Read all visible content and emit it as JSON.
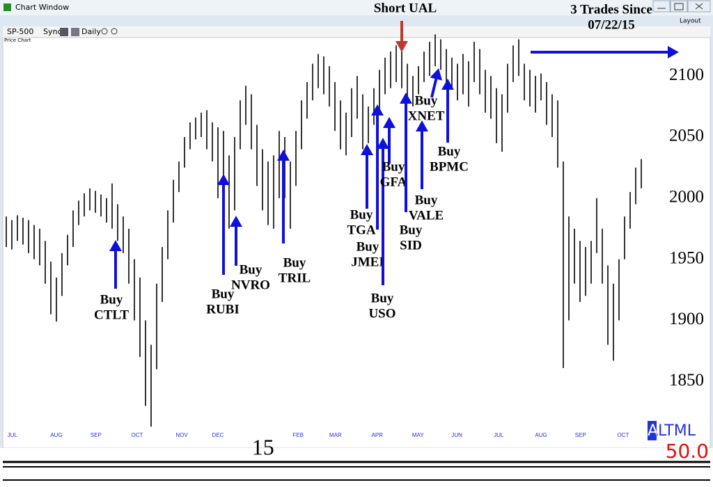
{
  "window": {
    "title": "Chart Window",
    "toolbar": [
      "SP-500",
      "Sync",
      "Daily"
    ],
    "layout_button": "Layout",
    "pane_label": "Price Chart",
    "indicator": "ALTML",
    "indicator_value": "50.0"
  },
  "chart_data": {
    "type": "range-bar",
    "x": [
      0,
      1,
      2,
      3,
      4,
      5,
      6,
      7,
      8,
      9,
      10,
      11,
      12,
      13,
      14,
      15,
      16,
      17,
      18,
      19,
      20,
      21,
      22,
      23,
      24,
      25,
      26,
      27,
      28,
      29,
      30,
      31,
      32,
      33,
      34,
      35,
      36,
      37,
      38,
      39,
      40,
      41,
      42,
      43,
      44,
      45,
      46,
      47,
      48,
      49,
      50,
      51,
      52,
      53,
      54,
      55,
      56,
      57,
      58,
      59,
      60,
      61,
      62,
      63,
      64,
      65,
      66,
      67,
      68,
      69,
      70,
      71,
      72,
      73,
      74,
      75,
      76,
      77,
      78,
      79,
      80,
      81,
      82,
      83,
      84,
      85,
      86,
      87,
      88,
      89,
      90,
      91,
      92,
      93,
      94,
      95,
      96,
      97,
      98,
      99,
      100,
      101,
      102,
      103,
      104,
      105,
      106,
      107,
      108,
      109,
      110,
      111,
      112,
      113,
      114
    ],
    "highs": [
      1985,
      1982,
      1986,
      1984,
      1982,
      1978,
      1975,
      1965,
      1948,
      1935,
      1955,
      1970,
      1990,
      1998,
      2004,
      2008,
      2006,
      2003,
      2000,
      2012,
      1995,
      1985,
      1975,
      1950,
      1935,
      1900,
      1880,
      1930,
      1960,
      1990,
      2015,
      2030,
      2050,
      2062,
      2066,
      2070,
      2072,
      2062,
      2058,
      2055,
      2035,
      2050,
      2080,
      2092,
      2085,
      2060,
      2040,
      2030,
      2035,
      2055,
      2050,
      2030,
      2055,
      2080,
      2095,
      2110,
      2118,
      2116,
      2108,
      2095,
      2080,
      2070,
      2090,
      2100,
      2085,
      2075,
      2090,
      2105,
      2115,
      2120,
      2125,
      2122,
      2110,
      2100,
      2108,
      2120,
      2128,
      2134,
      2130,
      2122,
      2115,
      2110,
      2118,
      2112,
      2128,
      2122,
      2105,
      2100,
      2090,
      2085,
      2110,
      2125,
      2130,
      2110,
      2105,
      2100,
      2102,
      2095,
      2085,
      2080,
      2030,
      1985,
      1975,
      1965,
      1960,
      1965,
      2000,
      1975,
      1945,
      1930,
      1950,
      1985,
      2005,
      2025,
      2032
    ],
    "lows": [
      1960,
      1958,
      1965,
      1962,
      1955,
      1950,
      1945,
      1930,
      1905,
      1899,
      1920,
      1945,
      1960,
      1978,
      1985,
      1990,
      1988,
      1985,
      1980,
      1975,
      1965,
      1955,
      1930,
      1900,
      1870,
      1830,
      1813,
      1860,
      1915,
      1950,
      1980,
      2005,
      2025,
      2040,
      2048,
      2050,
      2040,
      2030,
      2000,
      1985,
      1975,
      1990,
      2040,
      2060,
      2040,
      2010,
      1990,
      1978,
      1975,
      2000,
      2000,
      1975,
      2010,
      2040,
      2065,
      2080,
      2090,
      2085,
      2075,
      2055,
      2040,
      2035,
      2050,
      2065,
      2040,
      2045,
      2060,
      2070,
      2085,
      2090,
      2095,
      2090,
      2080,
      2075,
      2085,
      2095,
      2100,
      2108,
      2105,
      2095,
      2090,
      2080,
      2085,
      2075,
      2095,
      2085,
      2070,
      2065,
      2045,
      2038,
      2070,
      2095,
      2100,
      2080,
      2075,
      2070,
      2080,
      2060,
      2050,
      2025,
      1861,
      1900,
      1930,
      1915,
      1920,
      1930,
      1955,
      1930,
      1880,
      1867,
      1900,
      1950,
      1975,
      1995,
      2008
    ],
    "xlim": [
      -0.5,
      126
    ],
    "xticks": [
      {
        "value": 1.1,
        "label": "JUL"
      },
      {
        "value": 9,
        "label": "AUG"
      },
      {
        "value": 16.1,
        "label": "SEP"
      },
      {
        "value": 23.5,
        "label": "OCT"
      },
      {
        "value": 31.5,
        "label": "NOV"
      },
      {
        "value": 38,
        "label": "DEC"
      },
      {
        "value": 52.4,
        "label": "FEB"
      },
      {
        "value": 59.1,
        "label": "MAR"
      },
      {
        "value": 66.6,
        "label": "APR"
      },
      {
        "value": 73.9,
        "label": "MAY"
      },
      {
        "value": 80.9,
        "label": "JUN"
      },
      {
        "value": 88.4,
        "label": "JUL"
      },
      {
        "value": 96,
        "label": "AUG"
      },
      {
        "value": 103.1,
        "label": "SEP"
      },
      {
        "value": 110.75,
        "label": "OCT"
      }
    ],
    "year_ticks": [
      {
        "value": 46.1,
        "label": "15"
      }
    ],
    "ylim": [
      1812,
      2128
    ],
    "yticks": [
      1850,
      1900,
      1950,
      2000,
      2050,
      2100
    ],
    "annotations": [
      {
        "lines": [
          "Short UAL"
        ]
      },
      {
        "lines": [
          "3 Trades Since",
          "07/22/15"
        ]
      },
      {
        "lines": [
          "Buy",
          "CTLT"
        ]
      },
      {
        "lines": [
          "Buy",
          "RUBI"
        ]
      },
      {
        "lines": [
          "Buy",
          "NVRO"
        ]
      },
      {
        "lines": [
          "Buy",
          "TRIL"
        ]
      },
      {
        "lines": [
          "Buy",
          "TGA"
        ]
      },
      {
        "lines": [
          "Buy",
          "JMEI"
        ]
      },
      {
        "lines": [
          "Buy",
          "USO"
        ]
      },
      {
        "lines": [
          "Buy",
          "GFA"
        ]
      },
      {
        "lines": [
          "Buy",
          "SID"
        ]
      },
      {
        "lines": [
          "Buy",
          "VALE"
        ]
      },
      {
        "lines": [
          "Buy",
          "XNET"
        ]
      },
      {
        "lines": [
          "Buy",
          "BPMC"
        ]
      }
    ]
  }
}
